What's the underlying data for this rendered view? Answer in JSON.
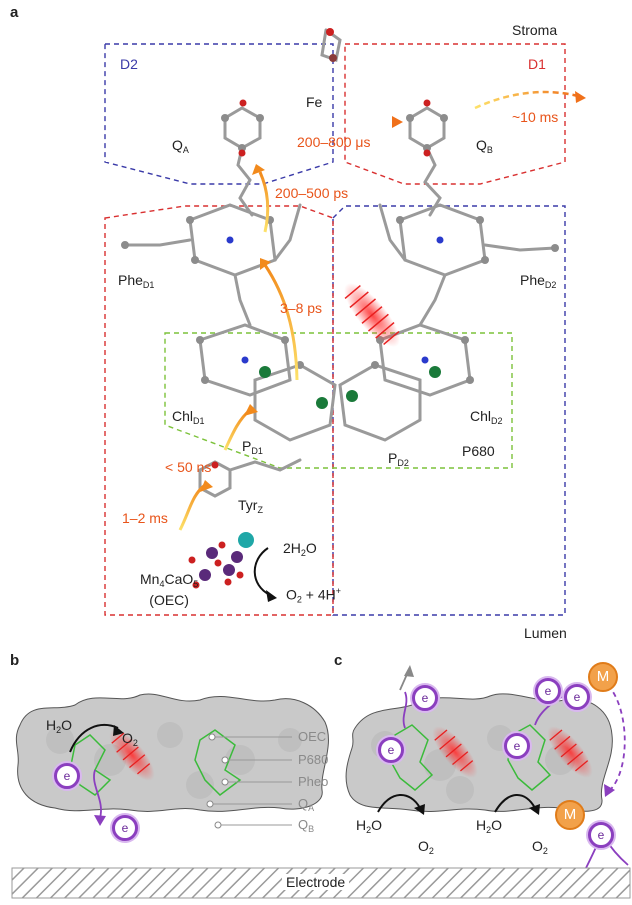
{
  "panel_a": {
    "label": "a",
    "stroma": "Stroma",
    "lumen": "Lumen",
    "d2": "D2",
    "d1": "D1",
    "fe": "Fe",
    "qa": "Q",
    "qa_sub": "A",
    "qb": "Q",
    "qb_sub": "B",
    "phe_d1": "Phe",
    "phe_d1_sub": "D1",
    "phe_d2": "Phe",
    "phe_d2_sub": "D2",
    "chl_d1": "Chl",
    "chl_d1_sub": "D1",
    "chl_d2": "Chl",
    "chl_d2_sub": "D2",
    "pd1": "P",
    "pd1_sub": "D1",
    "pd2": "P",
    "pd2_sub": "D2",
    "p680": "P680",
    "tyrz": "Tyr",
    "tyrz_sub": "Z",
    "cluster_1": "Mn",
    "cluster_1_sub": "4",
    "cluster_2": "CaO",
    "cluster_2_sub": "5",
    "oec": "(OEC)",
    "water": "2H",
    "water_sub": "2",
    "water_tail": "O",
    "products": "O",
    "products_sub": "2",
    "products_tail": " + 4H",
    "products_sup": "+",
    "timings": {
      "t_tyr": "1–2 ms",
      "t_p": "< 50 ns",
      "t_phe": "3–8 ps",
      "t_qa": "200–500 ps",
      "t_qb": "200–800 μs",
      "t_out": "~10 ms"
    }
  },
  "panel_b": {
    "label": "b",
    "h2o": "H",
    "h2o_sub": "2",
    "h2o_tail": "O",
    "o2": "O",
    "o2_sub": "2",
    "legend": [
      "OEC",
      "P680",
      "Pheo",
      "Q",
      "Q"
    ],
    "legend_subs": [
      "",
      "",
      "",
      "A",
      "B"
    ],
    "electron": "e"
  },
  "panel_c": {
    "label": "c",
    "h2o": "H",
    "h2o_sub": "2",
    "h2o_tail": "O",
    "o2": "O",
    "o2_sub": "2",
    "electron": "e",
    "mediator": "M"
  },
  "electrode": "Electrode",
  "colors": {
    "d2_box": "#3a3aa8",
    "d1_box": "#d93030",
    "p680_box": "#7cc23a",
    "timing": "#e8541a",
    "electron": "#8b3fbf",
    "mediator": "#f2a14a"
  }
}
